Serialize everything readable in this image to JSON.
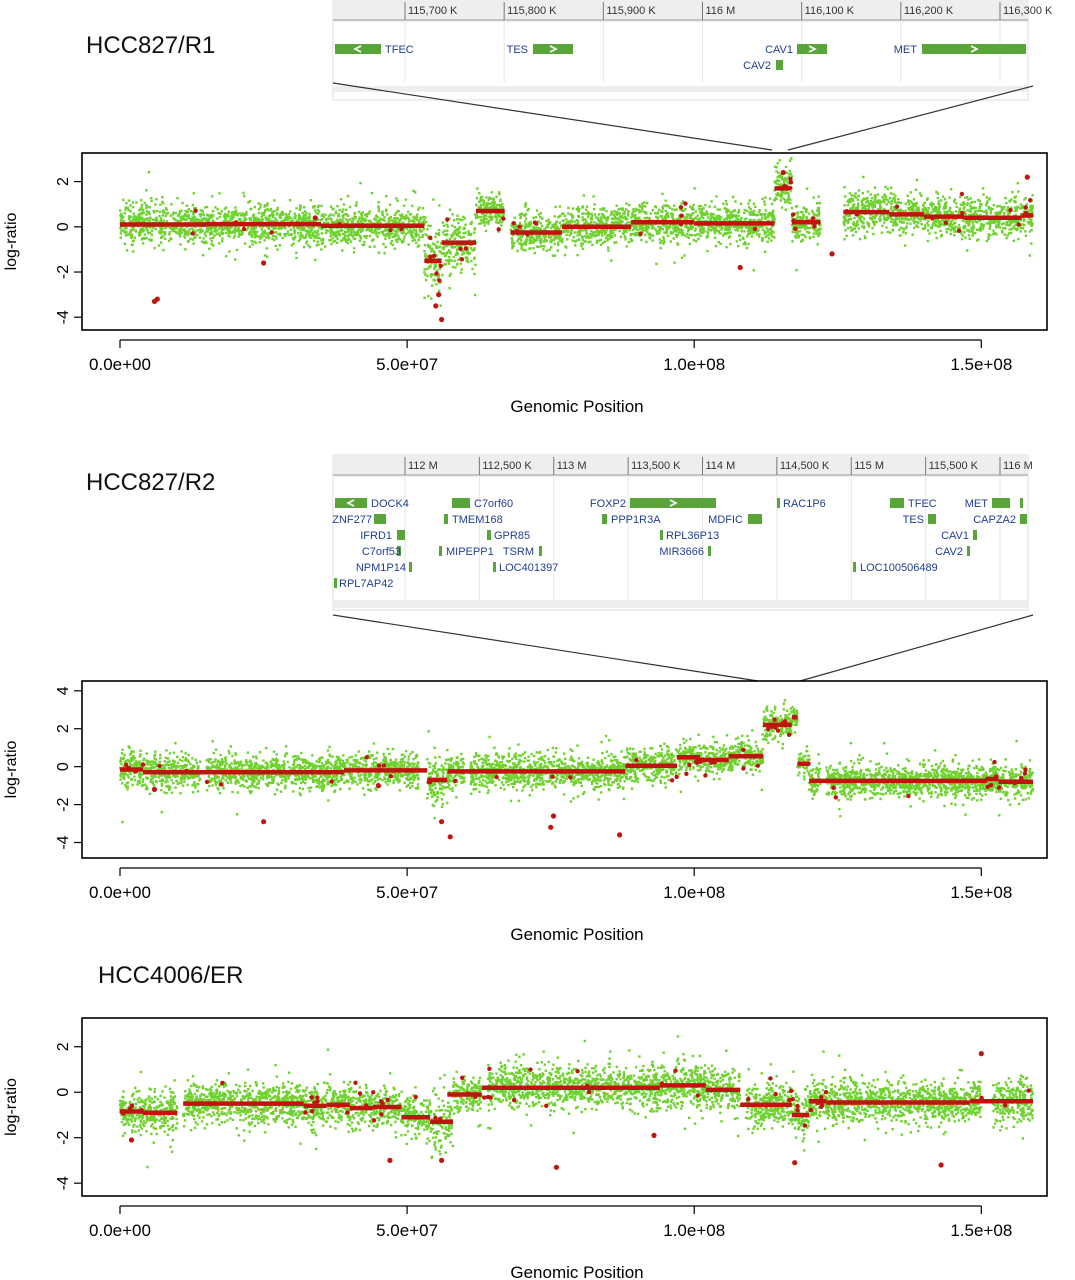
{
  "common": {
    "xlabel": "Genomic Position",
    "ylabel": "log-ratio",
    "x_tick_labels": [
      "0.0e+00",
      "5.0e+07",
      "1.0e+08",
      "1.5e+08"
    ],
    "x_ticks": [
      0,
      50000000,
      100000000,
      150000000
    ],
    "xlim": [
      0,
      159000000
    ],
    "colors": {
      "points": "#6fd12e",
      "segments": "#c0140f",
      "outlier": "#c0140f",
      "gene": "#5aa53a",
      "gene_label": "#1f3f8f",
      "ruler_bg": "#eeeeee"
    }
  },
  "panels": [
    {
      "title": "HCC827/R1",
      "ylim": [
        -4.3,
        3
      ],
      "y_ticks": [
        -4,
        -2,
        0,
        2
      ],
      "browser": {
        "ruler_labels": [
          "115,700 K",
          "115,800 K",
          "115,900 K",
          "116 M",
          "116,100 K",
          "116,200 K",
          "116,300 K"
        ],
        "genes": [
          {
            "name": "TFEC",
            "strand": "-"
          },
          {
            "name": "TES",
            "strand": "+"
          },
          {
            "name": "CAV1",
            "strand": "+"
          },
          {
            "name": "CAV2",
            "strand": "none"
          },
          {
            "name": "MET",
            "strand": "+"
          }
        ]
      },
      "chart_data": {
        "type": "scatter",
        "xlabel": "Genomic Position",
        "ylabel": "log-ratio",
        "xlim": [
          0,
          159000000
        ],
        "ylim": [
          -4.3,
          3
        ],
        "series": [
          {
            "name": "",
            "role": "segments",
            "segments": [
              [
                0,
                15000000,
                0.1
              ],
              [
                15000000,
                35000000,
                0.12
              ],
              [
                35000000,
                53000000,
                0.05
              ],
              [
                53000000,
                56000000,
                -1.5
              ],
              [
                56000000,
                62000000,
                -0.7
              ],
              [
                62000000,
                67000000,
                0.7
              ],
              [
                68000000,
                77000000,
                -0.25
              ],
              [
                77000000,
                89000000,
                0.0
              ],
              [
                89000000,
                100000000,
                0.2
              ],
              [
                100000000,
                114000000,
                0.15
              ],
              [
                114000000,
                116500000,
                1.7
              ],
              [
                116500000,
                117000000,
                2.0
              ],
              [
                117000000,
                122000000,
                0.2
              ],
              [
                126000000,
                134000000,
                0.65
              ],
              [
                134000000,
                140000000,
                0.55
              ],
              [
                140000000,
                147000000,
                0.45
              ],
              [
                147000000,
                157000000,
                0.4
              ],
              [
                157000000,
                159000000,
                0.5
              ]
            ]
          },
          {
            "name": "",
            "role": "noise_sd",
            "regions": [
              [
                0,
                53000000,
                0.55
              ],
              [
                53000000,
                56000000,
                1.1
              ],
              [
                56000000,
                62000000,
                0.8
              ],
              [
                62000000,
                67000000,
                0.5
              ],
              [
                68000000,
                114000000,
                0.55
              ],
              [
                114000000,
                117000000,
                0.6
              ],
              [
                117000000,
                126000000,
                0.55
              ],
              [
                126000000,
                159000000,
                0.6
              ]
            ]
          },
          {
            "name": "",
            "role": "outliers",
            "points": [
              [
                6000000,
                -3.3
              ],
              [
                6500000,
                -3.2
              ],
              [
                25000000,
                -1.6
              ],
              [
                34000000,
                0.4
              ],
              [
                55000000,
                -3.5
              ],
              [
                56000000,
                -4.1
              ],
              [
                55500000,
                -3.0
              ],
              [
                108000000,
                -1.8
              ],
              [
                124000000,
                -1.2
              ],
              [
                158000000,
                2.2
              ],
              [
                115500000,
                2.4
              ]
            ]
          }
        ],
        "gaps": [
          [
            67000000,
            68000000
          ],
          [
            122000000,
            126000000
          ]
        ]
      }
    },
    {
      "title": "HCC827/R2",
      "ylim": [
        -4.5,
        4.2
      ],
      "y_ticks": [
        -4,
        -2,
        0,
        2,
        4
      ],
      "browser": {
        "ruler_labels": [
          "112 M",
          "112,500 K",
          "113 M",
          "113,500 K",
          "114 M",
          "114,500 K",
          "115 M",
          "115,500 K",
          "116 M"
        ],
        "genes": [
          {
            "name": "DOCK4",
            "strand": "-"
          },
          {
            "name": "ZNF277",
            "strand": "none"
          },
          {
            "name": "IFRD1",
            "strand": "none"
          },
          {
            "name": "C7orf53",
            "strand": "none"
          },
          {
            "name": "NPM1P14",
            "strand": "none"
          },
          {
            "name": "RPL7AP42",
            "strand": "none"
          },
          {
            "name": "C7orf60",
            "strand": "none"
          },
          {
            "name": "TMEM168",
            "strand": "none"
          },
          {
            "name": "GPR85",
            "strand": "none"
          },
          {
            "name": "MIPEPP1",
            "strand": "none"
          },
          {
            "name": "TSRM",
            "strand": "none"
          },
          {
            "name": "LOC401397",
            "strand": "none"
          },
          {
            "name": "FOXP2",
            "strand": "+"
          },
          {
            "name": "PPP1R3A",
            "strand": "none"
          },
          {
            "name": "RPL36P13",
            "strand": "none"
          },
          {
            "name": "MIR3666",
            "strand": "none"
          },
          {
            "name": "MDFIC",
            "strand": "none"
          },
          {
            "name": "RAC1P6",
            "strand": "none"
          },
          {
            "name": "TFEC",
            "strand": "none"
          },
          {
            "name": "TES",
            "strand": "none"
          },
          {
            "name": "LOC100506489",
            "strand": "none"
          },
          {
            "name": "MET",
            "strand": "none"
          },
          {
            "name": "CAPZA2",
            "strand": "none"
          },
          {
            "name": "CAV1",
            "strand": "none"
          },
          {
            "name": "CAV2",
            "strand": "none"
          }
        ]
      },
      "chart_data": {
        "type": "scatter",
        "xlabel": "Genomic Position",
        "ylabel": "log-ratio",
        "xlim": [
          0,
          159000000
        ],
        "ylim": [
          -4.5,
          4.2
        ],
        "series": [
          {
            "name": "",
            "role": "segments",
            "segments": [
              [
                0,
                4000000,
                -0.15
              ],
              [
                4000000,
                39000000,
                -0.3
              ],
              [
                39000000,
                53500000,
                -0.2
              ],
              [
                53500000,
                57000000,
                -0.7
              ],
              [
                57000000,
                88000000,
                -0.25
              ],
              [
                88000000,
                97000000,
                0.05
              ],
              [
                97000000,
                101000000,
                0.5
              ],
              [
                101000000,
                106000000,
                0.35
              ],
              [
                106000000,
                112000000,
                0.55
              ],
              [
                112000000,
                117000000,
                2.2
              ],
              [
                117000000,
                118000000,
                2.6
              ],
              [
                118000000,
                120000000,
                0.15
              ],
              [
                120000000,
                151000000,
                -0.75
              ],
              [
                151000000,
                153000000,
                -0.65
              ],
              [
                153000000,
                159000000,
                -0.8
              ]
            ]
          },
          {
            "name": "",
            "role": "noise_sd",
            "regions": [
              [
                0,
                53500000,
                0.6
              ],
              [
                53500000,
                57000000,
                0.9
              ],
              [
                57000000,
                97000000,
                0.6
              ],
              [
                97000000,
                112000000,
                0.55
              ],
              [
                112000000,
                118000000,
                0.45
              ],
              [
                118000000,
                159000000,
                0.55
              ]
            ]
          },
          {
            "name": "",
            "role": "outliers",
            "points": [
              [
                25000000,
                -2.9
              ],
              [
                6000000,
                -1.2
              ],
              [
                56000000,
                -2.9
              ],
              [
                57500000,
                -3.7
              ],
              [
                75000000,
                -3.2
              ],
              [
                75500000,
                -2.6
              ],
              [
                87000000,
                -3.6
              ],
              [
                45000000,
                -1.0
              ]
            ]
          }
        ],
        "gaps": [
          [
            14000000,
            15000000
          ],
          [
            52000000,
            53500000
          ],
          [
            60000000,
            61000000
          ],
          [
            122000000,
            123000000
          ]
        ]
      }
    },
    {
      "title": "HCC4006/ER",
      "ylim": [
        -4.3,
        3
      ],
      "y_ticks": [
        -4,
        -2,
        0,
        2
      ],
      "chart_data": {
        "type": "scatter",
        "xlabel": "Genomic Position",
        "ylabel": "log-ratio",
        "xlim": [
          0,
          159000000
        ],
        "ylim": [
          -4.3,
          3
        ],
        "series": [
          {
            "name": "",
            "role": "segments",
            "segments": [
              [
                0,
                4000000,
                -0.85
              ],
              [
                4000000,
                10000000,
                -0.9
              ],
              [
                11000000,
                32000000,
                -0.5
              ],
              [
                32000000,
                36000000,
                -0.6
              ],
              [
                36000000,
                40000000,
                -0.55
              ],
              [
                40000000,
                44000000,
                -0.7
              ],
              [
                44000000,
                49000000,
                -0.65
              ],
              [
                49000000,
                54000000,
                -1.1
              ],
              [
                54000000,
                58000000,
                -1.3
              ],
              [
                57000000,
                63000000,
                -0.1
              ],
              [
                63000000,
                75000000,
                0.2
              ],
              [
                75000000,
                94000000,
                0.2
              ],
              [
                94000000,
                102000000,
                0.3
              ],
              [
                102000000,
                108000000,
                0.1
              ],
              [
                108000000,
                117000000,
                -0.55
              ],
              [
                117000000,
                120000000,
                -1.0
              ],
              [
                120000000,
                123000000,
                -0.4
              ],
              [
                123000000,
                148000000,
                -0.45
              ],
              [
                148000000,
                159000000,
                -0.4
              ]
            ]
          },
          {
            "name": "",
            "role": "noise_sd",
            "regions": [
              [
                0,
                54000000,
                0.6
              ],
              [
                54000000,
                58000000,
                0.8
              ],
              [
                58000000,
                63000000,
                0.5
              ],
              [
                63000000,
                108000000,
                0.65
              ],
              [
                108000000,
                159000000,
                0.6
              ]
            ]
          },
          {
            "name": "",
            "role": "outliers",
            "points": [
              [
                47000000,
                -3.0
              ],
              [
                56000000,
                -3.0
              ],
              [
                76000000,
                -3.3
              ],
              [
                93000000,
                -1.9
              ],
              [
                117500000,
                -3.1
              ],
              [
                143000000,
                -3.2
              ],
              [
                150000000,
                1.7
              ],
              [
                2000000,
                -2.1
              ]
            ]
          }
        ],
        "gaps": [
          [
            10000000,
            11000000
          ],
          [
            63000000,
            64000000
          ],
          [
            108000000,
            109000000
          ],
          [
            150000000,
            152000000
          ]
        ]
      }
    }
  ]
}
